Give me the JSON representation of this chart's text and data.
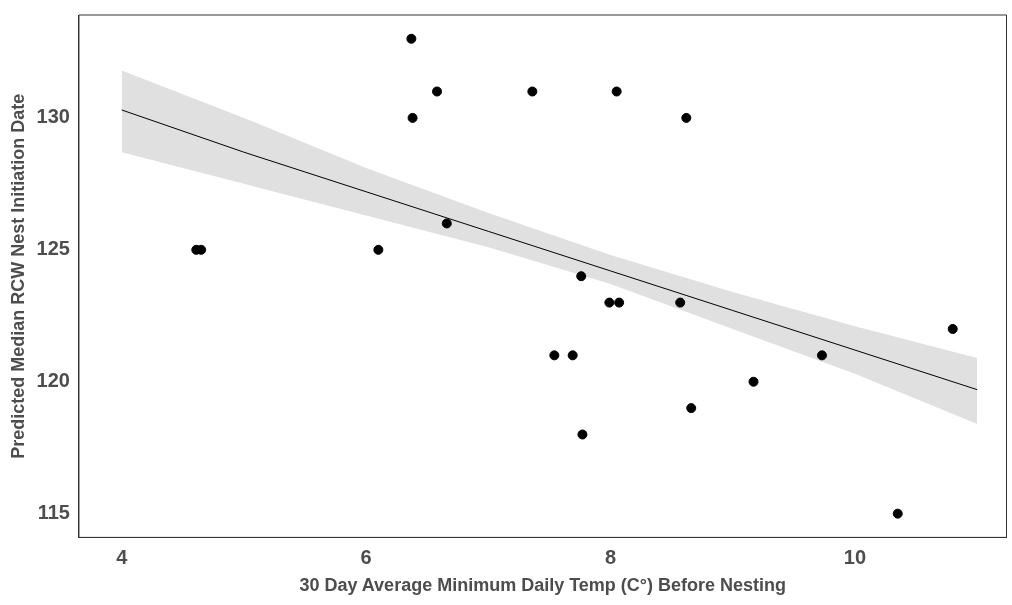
{
  "chart_data": {
    "type": "scatter",
    "xlabel": "30 Day Average Minimum Daily Temp (C°) Before Nesting",
    "ylabel": "Predicted Median RCW Nest Initiation Date",
    "xlim": [
      3.65,
      11.24
    ],
    "ylim": [
      114.1,
      133.9
    ],
    "xticks": [
      4,
      6,
      8,
      10
    ],
    "yticks": [
      115,
      120,
      125,
      130
    ],
    "marker": "circle",
    "series": [
      {
        "color": "#000000",
        "x": [
          4.61,
          4.65,
          6.1,
          6.37,
          6.38,
          6.58,
          6.66,
          7.36,
          8.05,
          8.62,
          7.76,
          7.99,
          8.07,
          8.57,
          7.54,
          7.69,
          7.77,
          8.66,
          9.17,
          9.73,
          10.35,
          10.8
        ],
        "values": [
          125,
          125,
          125,
          133,
          130,
          131,
          126,
          131,
          131,
          130,
          124,
          123,
          123,
          123,
          121,
          121,
          118,
          119,
          120,
          121,
          115,
          122
        ]
      },
      {
        "type": "line",
        "color": "#000000",
        "marker": "none",
        "x": [
          4,
          5,
          6,
          7,
          8,
          9,
          10,
          11
        ],
        "values": [
          130.3,
          128.7,
          127.2,
          125.7,
          124.2,
          122.7,
          121.2,
          119.7
        ],
        "lower": [
          128.7,
          127.5,
          126.3,
          125.1,
          123.7,
          122.0,
          120.3,
          118.4
        ],
        "upper": [
          131.8,
          130.0,
          128.1,
          126.4,
          124.8,
          123.4,
          122.1,
          120.9
        ]
      }
    ]
  }
}
